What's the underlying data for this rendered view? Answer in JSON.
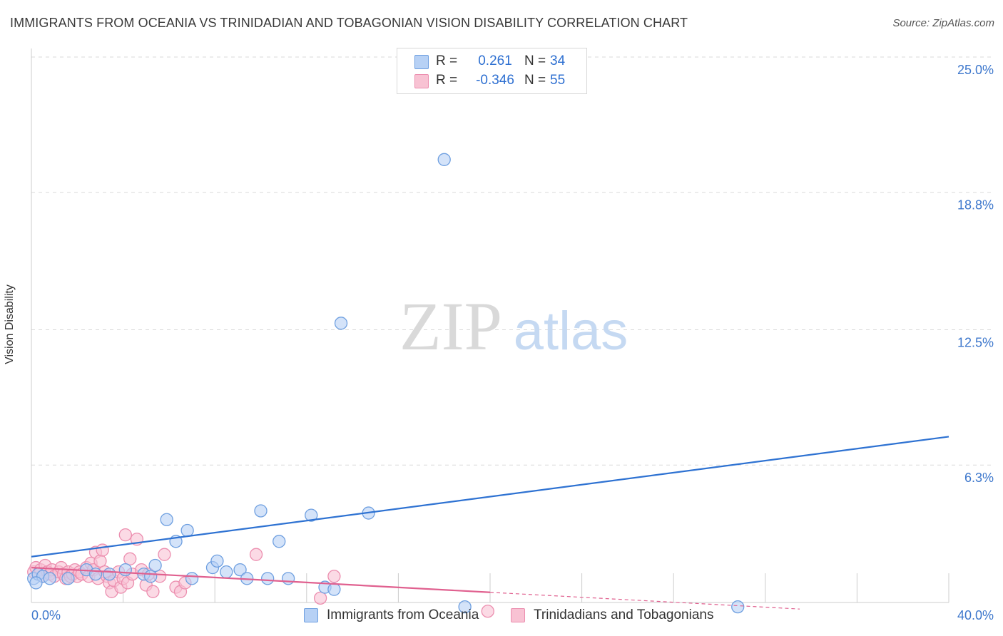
{
  "title": "IMMIGRANTS FROM OCEANIA VS TRINIDADIAN AND TOBAGONIAN VISION DISABILITY CORRELATION CHART",
  "source": "Source: ZipAtlas.com",
  "watermark": {
    "zip": "ZIP",
    "atlas": "atlas"
  },
  "legend": {
    "r_label": "R =",
    "n_label": "N =",
    "series1": {
      "r": "0.261",
      "n": "34"
    },
    "series2": {
      "r": "-0.346",
      "n": "55"
    }
  },
  "colors": {
    "blue_fill": "#b7d1f5",
    "blue_stroke": "#6e9fe0",
    "blue_line": "#2e72d2",
    "pink_fill": "#f8c2d3",
    "pink_stroke": "#ec8eaf",
    "pink_line": "#e0608f",
    "tick_text": "#3d77cc",
    "grid": "#d9d9d9"
  },
  "chart_data": {
    "type": "scatter",
    "title": "IMMIGRANTS FROM OCEANIA VS TRINIDADIAN AND TOBAGONIAN VISION DISABILITY CORRELATION CHART",
    "xlabel": "",
    "ylabel": "Vision Disability",
    "xlim": [
      0,
      40
    ],
    "ylim": [
      0,
      25
    ],
    "x_tick_labels": [
      {
        "value": 0,
        "label": "0.0%"
      },
      {
        "value": 40,
        "label": "40.0%"
      }
    ],
    "y_tick_labels": [
      {
        "value": 6.3,
        "label": "6.3%"
      },
      {
        "value": 12.5,
        "label": "12.5%"
      },
      {
        "value": 18.8,
        "label": "18.8%"
      },
      {
        "value": 25.0,
        "label": "25.0%"
      }
    ],
    "series": [
      {
        "name": "Immigrants from Oceania",
        "color": "blue",
        "r": 0.261,
        "n": 34,
        "trend": {
          "x": [
            0,
            40
          ],
          "y": [
            2.1,
            7.6
          ],
          "dashed_from": null
        },
        "points": [
          [
            0.1,
            1.1
          ],
          [
            0.3,
            1.3
          ],
          [
            0.5,
            1.2
          ],
          [
            0.8,
            1.1
          ],
          [
            1.6,
            1.1
          ],
          [
            2.4,
            1.5
          ],
          [
            2.8,
            1.3
          ],
          [
            3.4,
            1.3
          ],
          [
            4.1,
            1.5
          ],
          [
            4.9,
            1.3
          ],
          [
            5.2,
            1.2
          ],
          [
            5.4,
            1.7
          ],
          [
            5.9,
            3.8
          ],
          [
            6.3,
            2.8
          ],
          [
            6.8,
            3.3
          ],
          [
            7.0,
            1.1
          ],
          [
            7.9,
            1.6
          ],
          [
            8.1,
            1.9
          ],
          [
            8.5,
            1.4
          ],
          [
            9.1,
            1.5
          ],
          [
            9.4,
            1.1
          ],
          [
            10.0,
            4.2
          ],
          [
            10.3,
            1.1
          ],
          [
            10.8,
            2.8
          ],
          [
            11.2,
            1.1
          ],
          [
            12.2,
            4.0
          ],
          [
            12.8,
            0.7
          ],
          [
            13.2,
            0.6
          ],
          [
            13.5,
            12.8
          ],
          [
            14.7,
            4.1
          ],
          [
            18.0,
            20.3
          ],
          [
            18.9,
            -0.2
          ],
          [
            30.8,
            -0.2
          ],
          [
            0.2,
            0.9
          ]
        ]
      },
      {
        "name": "Trinidadians and Tobagonians",
        "color": "pink",
        "r": -0.346,
        "n": 55,
        "trend": {
          "x": [
            0,
            33.5
          ],
          "y": [
            1.6,
            -0.3
          ],
          "dashed_from": 20
        },
        "points": [
          [
            0.1,
            1.4
          ],
          [
            0.2,
            1.6
          ],
          [
            0.3,
            1.3
          ],
          [
            0.4,
            1.5
          ],
          [
            0.5,
            1.2
          ],
          [
            0.6,
            1.7
          ],
          [
            0.7,
            1.4
          ],
          [
            0.8,
            1.3
          ],
          [
            0.9,
            1.5
          ],
          [
            1.0,
            1.2
          ],
          [
            1.2,
            1.4
          ],
          [
            1.3,
            1.6
          ],
          [
            1.4,
            1.3
          ],
          [
            1.5,
            1.1
          ],
          [
            1.6,
            1.4
          ],
          [
            1.7,
            1.2
          ],
          [
            1.8,
            1.3
          ],
          [
            1.9,
            1.5
          ],
          [
            2.0,
            1.2
          ],
          [
            2.1,
            1.4
          ],
          [
            2.2,
            1.3
          ],
          [
            2.4,
            1.6
          ],
          [
            2.5,
            1.2
          ],
          [
            2.6,
            1.8
          ],
          [
            2.7,
            1.5
          ],
          [
            2.8,
            2.3
          ],
          [
            2.9,
            1.1
          ],
          [
            3.0,
            1.9
          ],
          [
            3.1,
            2.4
          ],
          [
            3.2,
            1.4
          ],
          [
            3.3,
            1.2
          ],
          [
            3.4,
            0.9
          ],
          [
            3.5,
            0.5
          ],
          [
            3.6,
            1.0
          ],
          [
            3.8,
            1.4
          ],
          [
            3.9,
            0.7
          ],
          [
            4.0,
            1.1
          ],
          [
            4.1,
            3.1
          ],
          [
            4.2,
            0.9
          ],
          [
            4.3,
            2.0
          ],
          [
            4.4,
            1.3
          ],
          [
            4.6,
            2.9
          ],
          [
            4.8,
            1.5
          ],
          [
            5.0,
            0.8
          ],
          [
            5.1,
            1.3
          ],
          [
            5.3,
            0.5
          ],
          [
            5.6,
            1.2
          ],
          [
            5.8,
            2.2
          ],
          [
            6.3,
            0.7
          ],
          [
            6.5,
            0.5
          ],
          [
            6.7,
            0.9
          ],
          [
            9.8,
            2.2
          ],
          [
            12.6,
            0.2
          ],
          [
            13.2,
            1.2
          ],
          [
            19.9,
            -0.4
          ]
        ]
      }
    ]
  }
}
